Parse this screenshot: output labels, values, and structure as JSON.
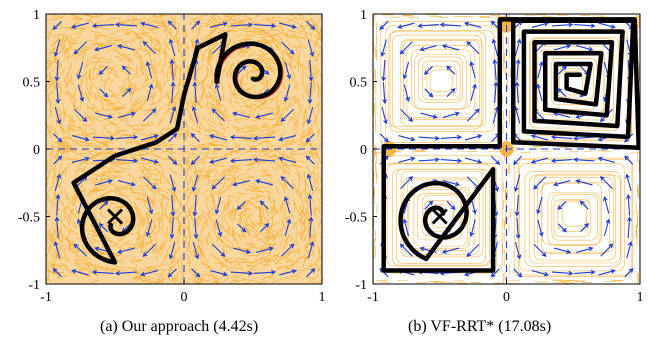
{
  "chart_data": [
    {
      "type": "scatter",
      "caption": "(a) Our approach (4.42s)",
      "xlim": [
        -1,
        1
      ],
      "ylim": [
        -1,
        1
      ],
      "xticks": [
        "-1",
        "0",
        "1"
      ],
      "yticks": [
        "1",
        "0.5",
        "0",
        "-0.5",
        "-1"
      ],
      "grid": false,
      "start": [
        0.5,
        0.5
      ],
      "goal": [
        -0.5,
        -0.5
      ],
      "goal_marker": "x",
      "tree_density": "dense",
      "path_color": "#000000",
      "alt_path_color": "#e2231a",
      "tree_color": "#f5a623",
      "field_color": "#1f3bd6"
    },
    {
      "type": "scatter",
      "caption": "(b) VF-RRT* (17.08s)",
      "xlim": [
        -1,
        1
      ],
      "ylim": [
        -1,
        1
      ],
      "xticks": [
        "-1",
        "0",
        "1"
      ],
      "yticks": [
        "1",
        "0.5",
        "0",
        "-0.5",
        "-1"
      ],
      "grid": false,
      "start": [
        0.5,
        0.5
      ],
      "goal": [
        -0.5,
        -0.5
      ],
      "goal_marker": "x",
      "tree_density": "sparse",
      "path_color": "#000000",
      "tree_color": "#f5a623",
      "field_color": "#1f3bd6"
    }
  ]
}
